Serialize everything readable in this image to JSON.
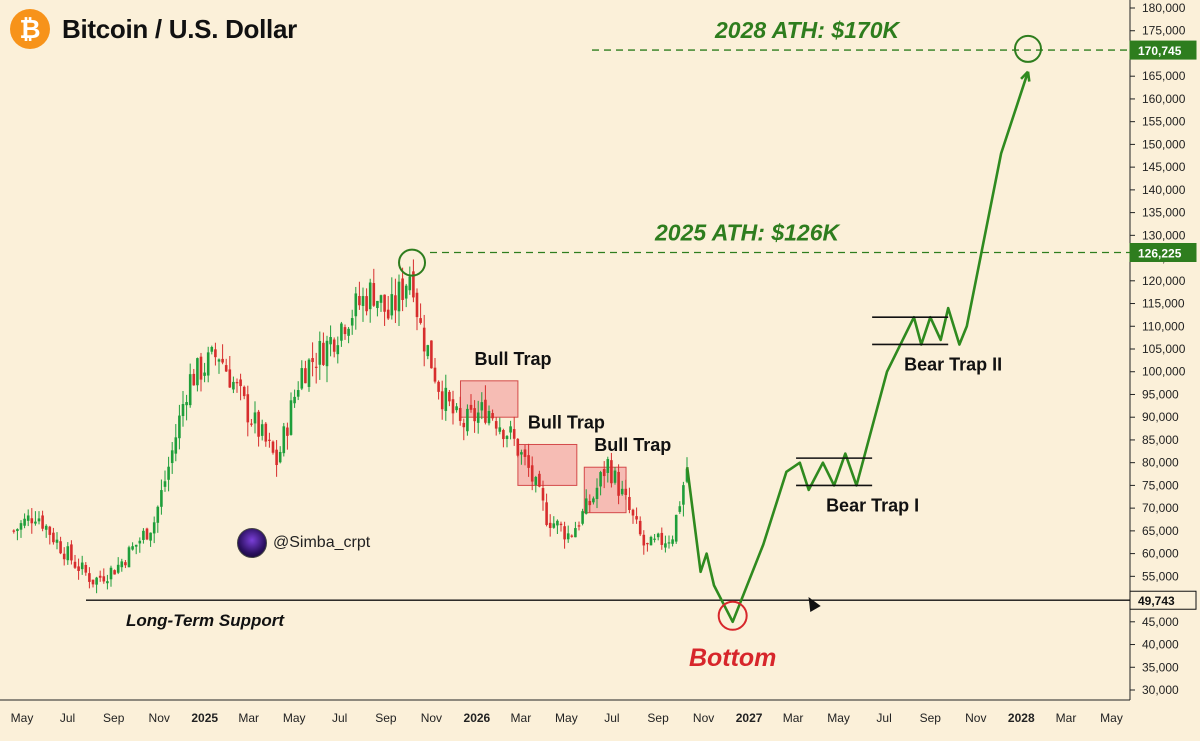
{
  "header": {
    "title": "Bitcoin / U.S. Dollar",
    "logo_icon": "bitcoin-icon",
    "logo_glyph": "₿"
  },
  "watermark": {
    "handle": "@Simba_crpt"
  },
  "colors": {
    "background": "#fbf0d9",
    "candle_up": "#1e9e3a",
    "candle_down": "#d72d2d",
    "projection": "#2f8a1f",
    "ath_green": "#2e7d1e",
    "bottom_red": "#d7262b",
    "trap_fill": "#f2a0a0",
    "trap_stroke": "#d44a4a",
    "price_tag_green": "#2e7d1e"
  },
  "chart_data": {
    "type": "line",
    "title": "Bitcoin / U.S. Dollar",
    "ylim": [
      30000,
      180000
    ],
    "y_ticks": [
      "180,000",
      "175,000",
      "170,000",
      "165,000",
      "160,000",
      "155,000",
      "150,000",
      "145,000",
      "140,000",
      "135,000",
      "130,000",
      "125,000",
      "120,000",
      "115,000",
      "110,000",
      "105,000",
      "100,000",
      "95,000",
      "90,000",
      "85,000",
      "80,000",
      "75,000",
      "70,000",
      "65,000",
      "60,000",
      "55,000",
      "50,000",
      "45,000",
      "40,000",
      "35,000",
      "30,000"
    ],
    "x_ticks": [
      {
        "label": "May",
        "date": "2024-05"
      },
      {
        "label": "Jul",
        "date": "2024-07"
      },
      {
        "label": "Sep",
        "date": "2024-09"
      },
      {
        "label": "Nov",
        "date": "2024-11"
      },
      {
        "label": "2025",
        "date": "2025-01",
        "bold": true
      },
      {
        "label": "Mar",
        "date": "2025-03"
      },
      {
        "label": "May",
        "date": "2025-05"
      },
      {
        "label": "Jul",
        "date": "2025-07"
      },
      {
        "label": "Sep",
        "date": "2025-09"
      },
      {
        "label": "Nov",
        "date": "2025-11"
      },
      {
        "label": "2026",
        "date": "2026-01",
        "bold": true
      },
      {
        "label": "Mar",
        "date": "2026-03"
      },
      {
        "label": "May",
        "date": "2026-05"
      },
      {
        "label": "Jul",
        "date": "2026-07"
      },
      {
        "label": "Sep",
        "date": "2026-09"
      },
      {
        "label": "Nov",
        "date": "2026-11"
      },
      {
        "label": "2027",
        "date": "2027-01",
        "bold": true
      },
      {
        "label": "Mar",
        "date": "2027-03"
      },
      {
        "label": "May",
        "date": "2027-05"
      },
      {
        "label": "Jul",
        "date": "2027-07"
      },
      {
        "label": "Sep",
        "date": "2027-09"
      },
      {
        "label": "Nov",
        "date": "2027-11"
      },
      {
        "label": "2028",
        "date": "2028-01",
        "bold": true
      },
      {
        "label": "Mar",
        "date": "2028-03"
      },
      {
        "label": "May",
        "date": "2028-05"
      }
    ],
    "series": [
      {
        "kind": "candlestick-outline",
        "points": [
          [
            "2024-04-20",
            65000
          ],
          [
            "2024-05-20",
            69000
          ],
          [
            "2024-06-15",
            63000
          ],
          [
            "2024-07-10",
            58000
          ],
          [
            "2024-08-05",
            54000
          ],
          [
            "2024-09-05",
            57000
          ],
          [
            "2024-10-01",
            62000
          ],
          [
            "2024-10-25",
            67000
          ],
          [
            "2024-11-15",
            80000
          ],
          [
            "2024-12-10",
            98000
          ],
          [
            "2025-01-20",
            104000
          ],
          [
            "2025-02-25",
            92000
          ],
          [
            "2025-04-08",
            80000
          ],
          [
            "2025-05-10",
            100000
          ],
          [
            "2025-06-15",
            106000
          ],
          [
            "2025-07-10",
            112000
          ],
          [
            "2025-08-15",
            118000
          ],
          [
            "2025-09-05",
            112000
          ],
          [
            "2025-10-06",
            123000
          ],
          [
            "2025-10-15",
            111000
          ],
          [
            "2025-11-15",
            95000
          ],
          [
            "2025-12-10",
            88000
          ],
          [
            "2026-01-15",
            92000
          ],
          [
            "2026-02-15",
            86000
          ],
          [
            "2026-03-10",
            79000
          ],
          [
            "2026-04-05",
            68000
          ],
          [
            "2026-05-05",
            64000
          ],
          [
            "2026-06-05",
            72000
          ],
          [
            "2026-06-25",
            80000
          ],
          [
            "2026-07-20",
            71000
          ],
          [
            "2026-08-15",
            61000
          ],
          [
            "2026-09-20",
            64000
          ],
          [
            "2026-10-10",
            79000
          ]
        ]
      },
      {
        "kind": "projection",
        "points": [
          [
            "2026-10-10",
            79000
          ],
          [
            "2026-10-28",
            56000
          ],
          [
            "2026-11-05",
            60000
          ],
          [
            "2026-11-15",
            53000
          ],
          [
            "2026-12-10",
            45000
          ],
          [
            "2027-01-20",
            62000
          ],
          [
            "2027-02-20",
            78000
          ],
          [
            "2027-03-10",
            80000
          ],
          [
            "2027-03-22",
            74000
          ],
          [
            "2027-04-10",
            80000
          ],
          [
            "2027-04-25",
            75000
          ],
          [
            "2027-05-10",
            82000
          ],
          [
            "2027-05-25",
            75000
          ],
          [
            "2027-07-05",
            100000
          ],
          [
            "2027-08-10",
            112000
          ],
          [
            "2027-08-20",
            106000
          ],
          [
            "2027-09-01",
            112000
          ],
          [
            "2027-09-15",
            107000
          ],
          [
            "2027-09-25",
            114000
          ],
          [
            "2027-10-10",
            106000
          ],
          [
            "2027-10-20",
            110000
          ],
          [
            "2027-12-05",
            148000
          ],
          [
            "2028-01-10",
            166000
          ]
        ]
      }
    ],
    "price_labels": [
      {
        "text": "170,745",
        "value": 170745,
        "style": "green"
      },
      {
        "text": "126,225",
        "value": 126225,
        "style": "green"
      },
      {
        "text": "49,743",
        "value": 49743,
        "style": "dark"
      }
    ],
    "ath_lines": [
      {
        "label": "2028 ATH: $170K",
        "value": 170745,
        "from": "2025-11-30"
      },
      {
        "label": "2025 ATH: $126K",
        "value": 126225,
        "from": "2025-11-30"
      }
    ],
    "support": {
      "label": "Long-Term Support",
      "value": 49743
    },
    "traps": [
      {
        "label": "Bull Trap",
        "from": "2025-12-10",
        "to": "2026-02-25",
        "low": 90000,
        "high": 98000
      },
      {
        "label": "Bull Trap",
        "from": "2026-02-25",
        "to": "2026-05-15",
        "low": 75000,
        "high": 84000
      },
      {
        "label": "Bull Trap",
        "from": "2026-05-25",
        "to": "2026-07-20",
        "low": 69000,
        "high": 79000
      }
    ],
    "bear_traps": [
      {
        "label": "Bear Trap I",
        "from": "2027-03-05",
        "to": "2027-06-15",
        "low": 75000,
        "high": 81000
      },
      {
        "label": "Bear Trap II",
        "from": "2027-06-15",
        "to": "2027-09-25",
        "low": 106000,
        "high": 112000
      }
    ],
    "bottom": {
      "label": "Bottom",
      "date": "2026-12-10",
      "value": 45000
    },
    "ath_markers": [
      {
        "date": "2025-10-06",
        "value": 124000
      },
      {
        "date": "2028-01-10",
        "value": 171000
      }
    ]
  }
}
